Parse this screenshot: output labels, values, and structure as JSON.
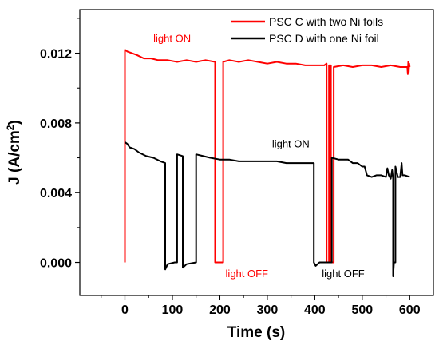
{
  "chart_data": {
    "type": "line",
    "title": "",
    "xlabel": "Time (s)",
    "ylabel_main": "J (A/cm",
    "ylabel_sup": "2",
    "ylabel_tail": ")",
    "xlim": [
      -95,
      650
    ],
    "ylim": [
      -0.0019,
      0.0145
    ],
    "xticks": [
      0,
      100,
      200,
      300,
      400,
      500,
      600
    ],
    "xtick_labels": [
      "0",
      "100",
      "200",
      "300",
      "400",
      "500",
      "600"
    ],
    "yticks": [
      0.0,
      0.004,
      0.008,
      0.012
    ],
    "ytick_labels": [
      "0.000",
      "0.004",
      "0.008",
      "0.012"
    ],
    "grid": false,
    "legend_position": "top-right",
    "series": [
      {
        "name": "PSC C with two Ni foils",
        "color": "#ff0000",
        "points": [
          [
            0,
            0
          ],
          [
            0,
            0.0122
          ],
          [
            5,
            0.0121
          ],
          [
            15,
            0.012
          ],
          [
            25,
            0.0119
          ],
          [
            40,
            0.0117
          ],
          [
            55,
            0.0117
          ],
          [
            70,
            0.0116
          ],
          [
            90,
            0.0116
          ],
          [
            110,
            0.0115
          ],
          [
            130,
            0.0116
          ],
          [
            150,
            0.0115
          ],
          [
            170,
            0.0116
          ],
          [
            190,
            0.0115
          ],
          [
            190,
            0
          ],
          [
            207,
            0
          ],
          [
            207,
            0.0115
          ],
          [
            220,
            0.0116
          ],
          [
            240,
            0.0115
          ],
          [
            260,
            0.0116
          ],
          [
            280,
            0.0115
          ],
          [
            300,
            0.0114
          ],
          [
            320,
            0.0115
          ],
          [
            340,
            0.0114
          ],
          [
            360,
            0.0114
          ],
          [
            380,
            0.0113
          ],
          [
            400,
            0.0113
          ],
          [
            420,
            0.0113
          ],
          [
            425,
            0.0114
          ],
          [
            425,
            0
          ],
          [
            430,
            0
          ],
          [
            430,
            0.0113
          ],
          [
            434,
            0.0113
          ],
          [
            434,
            0
          ],
          [
            440,
            0
          ],
          [
            440,
            0.0112
          ],
          [
            460,
            0.0113
          ],
          [
            480,
            0.0112
          ],
          [
            500,
            0.0113
          ],
          [
            520,
            0.0113
          ],
          [
            540,
            0.0112
          ],
          [
            560,
            0.0113
          ],
          [
            580,
            0.0112
          ],
          [
            595,
            0.0112
          ],
          [
            596,
            0.0108
          ],
          [
            597,
            0.0115
          ],
          [
            598,
            0.0109
          ],
          [
            599,
            0.0114
          ],
          [
            600,
            0.0112
          ]
        ]
      },
      {
        "name": "PSC D with one Ni foil",
        "color": "#000000",
        "points": [
          [
            0,
            0.0069
          ],
          [
            5,
            0.0068
          ],
          [
            10,
            0.0066
          ],
          [
            20,
            0.0065
          ],
          [
            30,
            0.0063
          ],
          [
            45,
            0.0061
          ],
          [
            60,
            0.006
          ],
          [
            75,
            0.0058
          ],
          [
            85,
            0.0057
          ],
          [
            85,
            -0.0004
          ],
          [
            90,
            -0.0001
          ],
          [
            105,
            0.0
          ],
          [
            110,
            0.0
          ],
          [
            110,
            0.0062
          ],
          [
            122,
            0.0061
          ],
          [
            122,
            -0.0003
          ],
          [
            130,
            -0.0001
          ],
          [
            150,
            0.0
          ],
          [
            150,
            0.0062
          ],
          [
            165,
            0.0061
          ],
          [
            180,
            0.006
          ],
          [
            200,
            0.0059
          ],
          [
            220,
            0.0059
          ],
          [
            240,
            0.0058
          ],
          [
            260,
            0.0058
          ],
          [
            280,
            0.0058
          ],
          [
            300,
            0.0058
          ],
          [
            320,
            0.0058
          ],
          [
            340,
            0.0057
          ],
          [
            360,
            0.0057
          ],
          [
            380,
            0.0057
          ],
          [
            398,
            0.0057
          ],
          [
            398,
            0.0
          ],
          [
            402,
            -0.0002
          ],
          [
            410,
            0.0
          ],
          [
            425,
            0.0
          ],
          [
            430,
            0.0
          ],
          [
            436,
            0.0
          ],
          [
            436,
            0.006
          ],
          [
            450,
            0.0059
          ],
          [
            470,
            0.0059
          ],
          [
            480,
            0.0057
          ],
          [
            490,
            0.0057
          ],
          [
            500,
            0.0055
          ],
          [
            505,
            0.0055
          ],
          [
            510,
            0.005
          ],
          [
            520,
            0.0049
          ],
          [
            530,
            0.005
          ],
          [
            540,
            0.005
          ],
          [
            550,
            0.0049
          ],
          [
            553,
            0.0054
          ],
          [
            556,
            0.005
          ],
          [
            560,
            0.0048
          ],
          [
            563,
            0.0053
          ],
          [
            565,
            0.0048
          ],
          [
            565,
            -0.0008
          ],
          [
            567,
            0.0
          ],
          [
            570,
            0.0
          ],
          [
            570,
            0.0055
          ],
          [
            575,
            0.0049
          ],
          [
            580,
            0.0049
          ],
          [
            583,
            0.0057
          ],
          [
            585,
            0.005
          ],
          [
            590,
            0.005
          ],
          [
            600,
            0.0049
          ]
        ]
      }
    ],
    "annotations": [
      {
        "text": "light ON",
        "color": "#ff0000",
        "x": 60,
        "y": 0.01265
      },
      {
        "text": "light ON",
        "color": "#000000",
        "x": 310,
        "y": 0.0066
      },
      {
        "text": "light OFF",
        "color": "#ff0000",
        "x": 212,
        "y": -0.00085
      },
      {
        "text": "light OFF",
        "color": "#000000",
        "x": 415,
        "y": -0.00085
      }
    ]
  }
}
